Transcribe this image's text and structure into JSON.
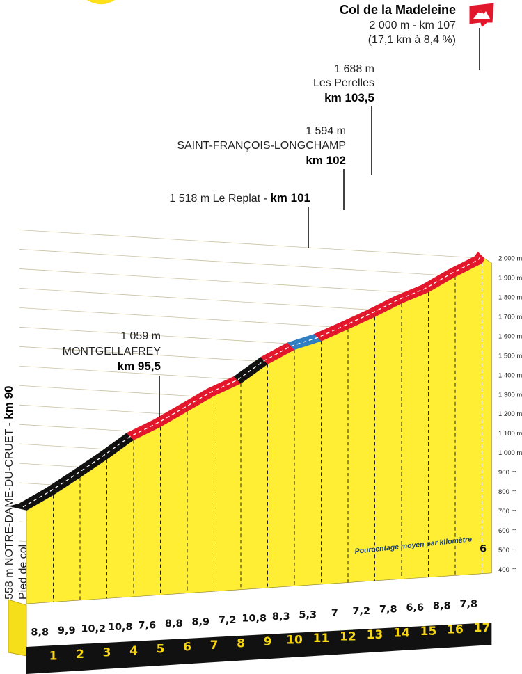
{
  "summit": {
    "name": "Col de la Madeleine",
    "line1": "2 000 m - km 107",
    "line2": "(17,1 km à 8,4 %)"
  },
  "start": {
    "line1": "558 m NOTRE-DAME-DU-CRUET - ",
    "km": "km 90",
    "line2": "Pied de col"
  },
  "annotations": {
    "montgellafrey": {
      "alt": "1 059 m",
      "name": "MONTGELLAFREY",
      "km": "km 95,5"
    },
    "replat": {
      "text": "1 518 m Le Replat - ",
      "km": "km 101"
    },
    "saint_francois": {
      "alt": "1 594 m",
      "name": "SAINT-FRANÇOIS-LONGCHAMP",
      "km": "km 102"
    },
    "perelles": {
      "alt": "1 688 m",
      "name": "Les Perelles",
      "km": "km 103,5"
    }
  },
  "legend": "Pourcentage moyen par kilomètre",
  "colors": {
    "fill": "#ffee33",
    "front": "#f5df1a",
    "red": "#e3172b",
    "black": "#111111",
    "blue": "#2f7fc4",
    "base": "#111111",
    "km_label": "#f6d512"
  },
  "chart_data": {
    "type": "area",
    "title": "Col de la Madeleine",
    "xlabel": "",
    "ylabel": "",
    "ylim": [
      400,
      2000
    ],
    "yticks": [
      "400 m",
      "500 m",
      "600 m",
      "700 m",
      "800 m",
      "900 m",
      "1 000 m",
      "1 100 m",
      "1 200 m",
      "1 300 m",
      "1 400 m",
      "1 500 m",
      "1 600 m",
      "1 700 m",
      "1 800 m",
      "1 900 m",
      "2 000 m"
    ],
    "x_labels": [
      "1",
      "2",
      "3",
      "4",
      "5",
      "6",
      "7",
      "8",
      "9",
      "10",
      "11",
      "12",
      "13",
      "14",
      "15",
      "16",
      "17"
    ],
    "x": [
      0,
      1,
      2,
      3,
      4,
      5,
      6,
      7,
      8,
      9,
      10,
      11,
      12,
      13,
      14,
      15,
      16,
      17,
      17.1
    ],
    "elevation": [
      558,
      646,
      745,
      847,
      955,
      1031,
      1119,
      1208,
      1280,
      1388,
      1471,
      1524,
      1594,
      1666,
      1744,
      1810,
      1898,
      1976,
      2000
    ],
    "gradients": [
      8.8,
      9.9,
      10.2,
      10.8,
      7.6,
      8.8,
      8.9,
      7.2,
      10.8,
      8.3,
      5.3,
      7,
      7.2,
      7.8,
      6.6,
      8.8,
      7.8,
      6
    ],
    "segment_colors": [
      "black",
      "black",
      "black",
      "black",
      "red",
      "red",
      "red",
      "red",
      "black",
      "red",
      "blue",
      "red",
      "red",
      "red",
      "red",
      "red",
      "red",
      "red"
    ]
  }
}
